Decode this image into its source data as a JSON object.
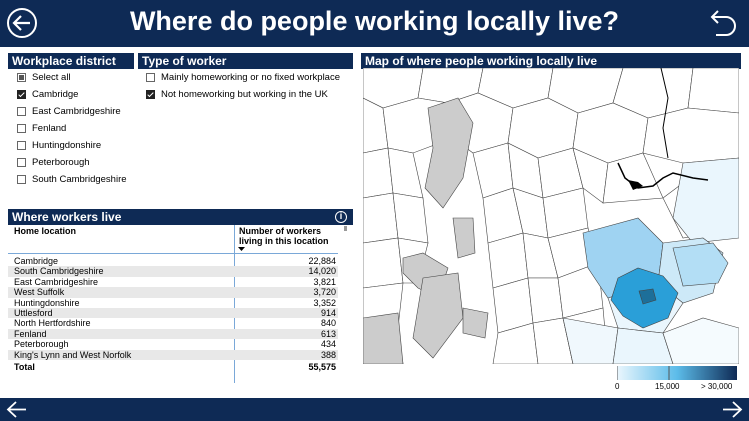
{
  "header": {
    "title": "Where do people working locally live?",
    "back_icon": "circle-arrow-left-icon",
    "return_icon": "return-arrow-icon"
  },
  "filters": {
    "workplace": {
      "title": "Workplace district",
      "items": [
        {
          "label": "Select all",
          "state": "partial"
        },
        {
          "label": "Cambridge",
          "state": "checked"
        },
        {
          "label": "East Cambridgeshire",
          "state": "unchecked"
        },
        {
          "label": "Fenland",
          "state": "unchecked"
        },
        {
          "label": "Huntingdonshire",
          "state": "unchecked"
        },
        {
          "label": "Peterborough",
          "state": "unchecked"
        },
        {
          "label": "South Cambridgeshire",
          "state": "unchecked"
        }
      ]
    },
    "worker_type": {
      "title": "Type of worker",
      "items": [
        {
          "label": "Mainly homeworking or no fixed workplace",
          "state": "unchecked"
        },
        {
          "label": "Not homeworking but working in the UK",
          "state": "checked"
        }
      ]
    }
  },
  "table": {
    "title": "Where workers live",
    "col_location": "Home location",
    "col_count": "Number of workers living in this location",
    "rows": [
      {
        "location": "Cambridge",
        "count": "22,884"
      },
      {
        "location": "South Cambridgeshire",
        "count": "14,020"
      },
      {
        "location": "East Cambridgeshire",
        "count": "3,821"
      },
      {
        "location": "West Suffolk",
        "count": "3,720"
      },
      {
        "location": "Huntingdonshire",
        "count": "3,352"
      },
      {
        "location": "Uttlesford",
        "count": "914"
      },
      {
        "location": "North Hertfordshire",
        "count": "840"
      },
      {
        "location": "Fenland",
        "count": "613"
      },
      {
        "location": "Peterborough",
        "count": "434"
      },
      {
        "location": "King's Lynn and West Norfolk",
        "count": "388"
      }
    ],
    "total_label": "Total",
    "total_value": "55,575"
  },
  "map": {
    "title": "Map of where people working locally live",
    "legend": {
      "min": "0",
      "mid": "15,000",
      "max": "> 30,000"
    },
    "colors": {
      "dark": "#0e2a55",
      "grey": "#cccccc",
      "light": "#dff0fb",
      "mid": "#9fd3f2",
      "strong": "#2a9fd8"
    }
  },
  "footer": {
    "left_icon": "arrow-left-icon",
    "right_icon": "arrow-right-icon"
  }
}
